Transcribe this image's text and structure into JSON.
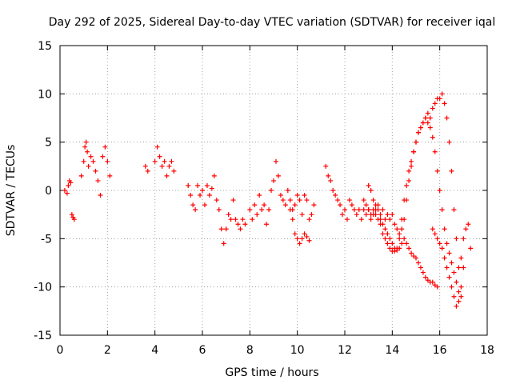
{
  "chart_data": {
    "type": "scatter",
    "title": "Day 292 of 2025, Sidereal Day-to-day VTEC variation (SDTVAR) for receiver iqal",
    "xlabel": "GPS time / hours",
    "ylabel": "SDTVAR / TECUs",
    "xlim": [
      0,
      18
    ],
    "ylim": [
      -15,
      15
    ],
    "xticks": [
      0,
      2,
      4,
      6,
      8,
      10,
      12,
      14,
      16,
      18
    ],
    "yticks": [
      -15,
      -10,
      -5,
      0,
      5,
      10,
      15
    ],
    "grid": true,
    "marker": "+",
    "color": "#ff0000",
    "series": [
      {
        "name": "SDTVAR",
        "x": [
          0.2,
          0.3,
          0.35,
          0.4,
          0.45,
          0.5,
          0.55,
          0.6,
          0.9,
          1.0,
          1.05,
          1.1,
          1.15,
          1.2,
          1.3,
          1.4,
          1.5,
          1.6,
          1.7,
          1.8,
          1.9,
          2.0,
          2.1,
          3.6,
          3.7,
          4.0,
          4.1,
          4.2,
          4.3,
          4.4,
          4.5,
          4.6,
          4.7,
          4.8,
          5.4,
          5.5,
          5.6,
          5.7,
          5.8,
          5.9,
          6.0,
          6.1,
          6.2,
          6.3,
          6.4,
          6.5,
          6.6,
          6.7,
          6.8,
          6.9,
          7.0,
          7.1,
          7.2,
          7.3,
          7.4,
          7.5,
          7.6,
          7.7,
          7.8,
          8.0,
          8.1,
          8.2,
          8.3,
          8.4,
          8.5,
          8.6,
          8.7,
          8.8,
          8.9,
          9.0,
          9.1,
          9.2,
          9.3,
          9.4,
          9.5,
          9.6,
          9.7,
          9.8,
          9.9,
          10.0,
          10.1,
          10.2,
          10.3,
          10.4,
          10.5,
          10.6,
          10.7,
          11.2,
          11.3,
          11.4,
          11.5,
          11.6,
          11.7,
          11.8,
          11.9,
          12.0,
          12.1,
          12.2,
          12.3,
          12.4,
          12.5,
          12.6,
          12.7,
          12.8,
          12.9,
          13.0,
          13.1,
          13.2,
          13.3,
          13.4,
          13.5,
          13.6,
          13.7,
          13.8,
          13.9,
          14.0,
          14.1,
          14.2,
          14.3,
          14.4,
          14.5,
          14.6,
          14.7,
          14.8,
          14.9,
          15.0,
          15.1,
          15.2,
          15.3,
          15.4,
          15.5,
          15.6,
          15.7,
          15.8,
          15.9,
          16.0,
          16.1,
          16.2,
          16.3,
          16.4,
          16.5,
          16.6,
          16.7,
          16.8,
          16.9,
          17.0,
          17.1,
          17.2,
          17.3,
          9.7,
          9.8,
          9.9,
          10.0,
          10.1,
          10.2,
          10.3,
          10.4,
          10.5,
          13.0,
          13.1,
          13.2,
          13.3,
          13.4,
          13.5,
          13.6,
          13.7,
          13.8,
          13.9,
          14.0,
          14.1,
          14.2,
          14.3,
          14.4,
          14.5,
          14.6,
          14.7,
          14.8,
          14.9,
          15.0,
          15.1,
          15.2,
          15.3,
          15.4,
          15.5,
          15.6,
          15.7,
          15.8,
          15.9,
          15.7,
          15.8,
          15.9,
          16.0,
          16.1,
          16.2,
          16.3,
          16.4,
          16.5,
          16.6,
          16.7,
          16.8,
          16.9,
          17.0,
          12.8,
          12.9,
          13.0,
          13.1,
          13.2,
          13.3,
          13.4,
          13.5,
          13.6,
          13.7,
          13.8,
          13.9,
          14.0,
          14.1,
          14.2,
          14.3,
          14.4,
          14.5,
          14.6,
          14.7,
          14.8,
          14.9,
          15.0,
          15.1,
          15.2,
          15.3,
          15.4,
          15.5,
          15.6,
          15.7,
          15.8,
          15.9,
          16.0,
          16.1,
          16.2,
          16.3,
          16.4,
          16.5,
          16.6,
          16.7,
          16.8,
          16.9
        ],
        "y": [
          0.0,
          -0.3,
          0.5,
          1.0,
          0.8,
          -2.5,
          -2.8,
          -3.0,
          1.5,
          3.0,
          4.5,
          5.0,
          4.0,
          2.5,
          3.5,
          3.0,
          2.0,
          1.0,
          -0.5,
          3.5,
          4.5,
          3.0,
          1.5,
          2.5,
          2.0,
          3.0,
          4.5,
          3.5,
          2.5,
          3.0,
          1.5,
          2.5,
          3.0,
          2.0,
          0.5,
          -0.5,
          -1.5,
          -2.0,
          0.5,
          -0.5,
          0.0,
          -1.5,
          0.5,
          -0.5,
          0.2,
          1.5,
          -1.0,
          -2.0,
          -4.0,
          -5.5,
          -4.0,
          -2.5,
          -3.0,
          -1.0,
          -3.0,
          -3.5,
          -4.0,
          -3.0,
          -3.5,
          -2.0,
          -3.0,
          -1.5,
          -2.5,
          -0.5,
          -2.0,
          -1.5,
          -3.5,
          -2.0,
          0.0,
          1.0,
          3.0,
          1.5,
          -0.5,
          -1.0,
          -1.5,
          0.0,
          -1.0,
          -2.0,
          -1.5,
          -0.5,
          -1.0,
          -2.5,
          -0.5,
          -1.0,
          -3.0,
          -2.5,
          -1.5,
          2.5,
          1.5,
          1.0,
          0.0,
          -0.5,
          -1.0,
          -1.5,
          -2.5,
          -2.0,
          -3.0,
          -1.0,
          -1.5,
          -2.0,
          -2.5,
          -2.0,
          -3.0,
          -2.0,
          -2.5,
          -2.0,
          -3.0,
          -2.5,
          -2.0,
          -1.5,
          -2.5,
          -2.0,
          -3.0,
          -2.5,
          -3.0,
          -2.5,
          -3.5,
          -4.0,
          -4.5,
          -4.0,
          -3.0,
          -1.0,
          1.0,
          2.5,
          4.0,
          5.0,
          6.0,
          6.5,
          7.0,
          7.5,
          8.0,
          7.5,
          8.5,
          9.0,
          9.5,
          9.5,
          10.0,
          9.0,
          7.5,
          5.0,
          2.0,
          -2.0,
          -5.0,
          -8.0,
          -7.0,
          -5.0,
          -4.0,
          -3.5,
          -6.0,
          -2.0,
          -3.0,
          -4.5,
          -5.0,
          -5.5,
          -5.0,
          -4.5,
          -4.8,
          -5.2,
          0.5,
          0.0,
          -1.0,
          -1.5,
          -2.0,
          -3.0,
          -3.5,
          -4.0,
          -4.5,
          -5.0,
          -5.5,
          -6.0,
          -6.2,
          -6.0,
          -5.5,
          -5.0,
          -5.5,
          -6.0,
          -6.5,
          -6.8,
          -7.0,
          -7.5,
          -8.0,
          -8.5,
          -9.0,
          -9.3,
          -9.5,
          -9.5,
          -9.8,
          -10.0,
          -4.0,
          -4.5,
          -5.0,
          -5.5,
          -6.0,
          -7.0,
          -8.0,
          -9.0,
          -10.0,
          -11.0,
          -12.0,
          -11.5,
          -10.0,
          -8.0,
          -1.0,
          -1.5,
          -2.0,
          -2.5,
          -2.0,
          -2.5,
          -3.0,
          -3.5,
          -4.5,
          -5.0,
          -5.5,
          -6.0,
          -6.3,
          -6.3,
          -6.0,
          -5.0,
          -3.0,
          -1.0,
          0.5,
          2.0,
          3.0,
          4.0,
          5.0,
          6.0,
          6.5,
          7.0,
          7.5,
          7.0,
          6.5,
          5.5,
          4.0,
          2.0,
          0.0,
          -2.0,
          -4.0,
          -5.5,
          -6.5,
          -7.5,
          -8.5,
          -9.5,
          -10.5,
          -11.0
        ]
      }
    ]
  }
}
